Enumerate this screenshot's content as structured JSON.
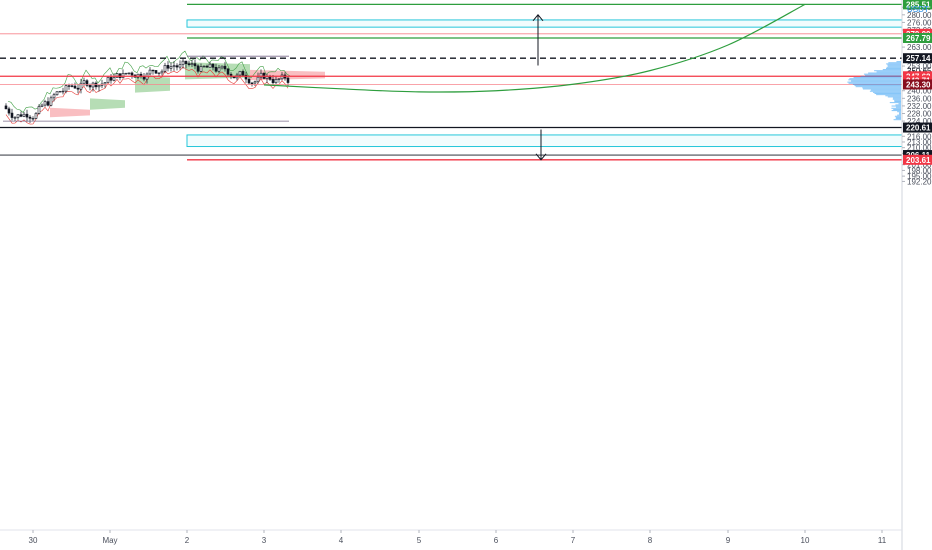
{
  "currency_label": "USDT",
  "colors": {
    "green": "#2e9e3e",
    "red": "#f23645",
    "cyan": "#26c6da",
    "black": "#131722",
    "candle": "#131722",
    "cloud_green": "#9ed29c",
    "cloud_red": "#f7a8ac",
    "volume_profile": "#2196f3"
  },
  "chart_data": {
    "type": "candlestick",
    "y_axis": {
      "ticks": [
        192.2,
        195.0,
        198.0,
        201.0,
        207.0,
        210.0,
        213.0,
        216.0,
        224.0,
        228.0,
        232.0,
        236.0,
        240.0,
        253.0,
        263.0,
        272.0,
        276.0,
        280.0,
        284.0
      ],
      "range": [
        190.0,
        290.5
      ]
    },
    "x_axis": {
      "ticks": [
        "30",
        "May",
        "2",
        "3",
        "4",
        "5",
        "6",
        "7",
        "8",
        "9",
        "10",
        "11"
      ]
    },
    "price_labels": [
      {
        "value": 285.51,
        "label": "285.51",
        "style": "green"
      },
      {
        "value": 270.0,
        "label": "270.00",
        "style": "red"
      },
      {
        "value": 267.79,
        "label": "267.79",
        "style": "green"
      },
      {
        "value": 257.14,
        "label": "257.14",
        "style": "black"
      },
      {
        "value": 250.65,
        "label": "250.65",
        "style": "plain"
      },
      {
        "value": 249.2,
        "label": "21:10",
        "style": "plain"
      },
      {
        "value": 247.62,
        "label": "247.62",
        "style": "red"
      },
      {
        "value": 245.3,
        "label": "243.71",
        "style": "red"
      },
      {
        "value": 243.3,
        "label": "243.30",
        "style": "darkred"
      },
      {
        "value": 220.61,
        "label": "220.61",
        "style": "black"
      },
      {
        "value": 206.11,
        "label": "206.11",
        "style": "black"
      },
      {
        "value": 203.61,
        "label": "203.61",
        "style": "red"
      }
    ],
    "horizontal_lines": [
      {
        "value": 285.51,
        "x_start": "2",
        "style": "green"
      },
      {
        "value": 270.0,
        "x_start": "left",
        "style": "red-thin"
      },
      {
        "value": 267.79,
        "x_start": "2",
        "style": "green"
      },
      {
        "value": 257.14,
        "x_start": "left",
        "style": "black-dashed"
      },
      {
        "value": 247.62,
        "x_start": "left",
        "style": "red"
      },
      {
        "value": 243.3,
        "x_start": "left",
        "style": "red-thin"
      },
      {
        "value": 220.61,
        "x_start": "left",
        "style": "black"
      },
      {
        "value": 206.11,
        "x_start": "left",
        "style": "black-thin"
      },
      {
        "value": 203.61,
        "x_start": "2",
        "style": "red"
      }
    ],
    "zones": [
      {
        "from_price": 273.5,
        "to_price": 277.3,
        "x_start": "2",
        "style": "cyan"
      },
      {
        "from_price": 210.6,
        "to_price": 216.7,
        "x_start": "2",
        "style": "cyan"
      }
    ],
    "arrows": [
      {
        "x": "7",
        "from_price": 253.3,
        "to_price": 280.0,
        "direction": "up"
      },
      {
        "x": "7",
        "from_price": 219.6,
        "to_price": 203.6,
        "direction": "down"
      }
    ],
    "projection_curve": {
      "style": "green",
      "points": [
        [
          "3",
          243.1
        ],
        [
          "4",
          241.0
        ],
        [
          "5",
          239.4
        ],
        [
          "6",
          240.0
        ],
        [
          "7",
          243.4
        ],
        [
          "8",
          250.6
        ],
        [
          "9",
          264.1
        ],
        [
          "10",
          285.5
        ]
      ]
    },
    "range_box": {
      "from_price": 224.0,
      "to_price": 258.2,
      "x_start": "30",
      "x_end": "3"
    }
  }
}
